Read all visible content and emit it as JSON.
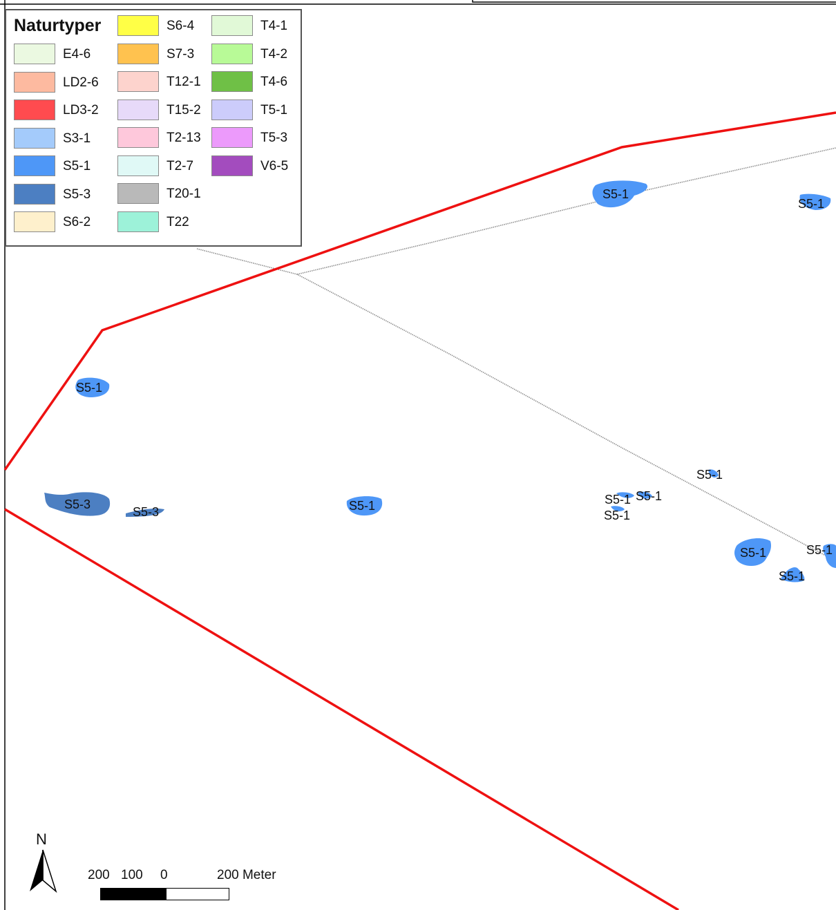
{
  "legend": {
    "title": "Naturtyper",
    "columns": [
      [
        {
          "code": "E4-6",
          "color": "#ebf9e1"
        },
        {
          "code": "LD2-6",
          "color": "#fdbaa0"
        },
        {
          "code": "LD3-2",
          "color": "#ff4b4f"
        },
        {
          "code": "S3-1",
          "color": "#a4cbfb"
        },
        {
          "code": "S5-1",
          "color": "#4e97f7"
        },
        {
          "code": "S5-3",
          "color": "#4c7fc2"
        },
        {
          "code": "S6-2",
          "color": "#fef0cc"
        }
      ],
      [
        {
          "code": "S6-4",
          "color": "#ffff46"
        },
        {
          "code": "S7-3",
          "color": "#ffc24f"
        },
        {
          "code": "T12-1",
          "color": "#fdd3cd"
        },
        {
          "code": "T15-2",
          "color": "#e7daf9"
        },
        {
          "code": "T2-13",
          "color": "#fec8db"
        },
        {
          "code": "T2-7",
          "color": "#e0f9f6"
        },
        {
          "code": "T20-1",
          "color": "#b9b9b9"
        },
        {
          "code": "T22",
          "color": "#9df2d9"
        }
      ],
      [
        {
          "code": "T4-1",
          "color": "#e1f9d7"
        },
        {
          "code": "T4-2",
          "color": "#b8fa97"
        },
        {
          "code": "T4-6",
          "color": "#6fc046"
        },
        {
          "code": "T5-1",
          "color": "#ccccfb"
        },
        {
          "code": "T5-3",
          "color": "#ec9afb"
        },
        {
          "code": "V6-5",
          "color": "#a34cbe"
        }
      ]
    ]
  },
  "map": {
    "boundary_color": "#ee1111",
    "track_color": "#8e8e8e",
    "features": [
      {
        "label": "S5-1",
        "type": "S5-1"
      },
      {
        "label": "S5-1",
        "type": "S5-1"
      },
      {
        "label": "S5-1",
        "type": "S5-1"
      },
      {
        "label": "S5-3",
        "type": "S5-3"
      },
      {
        "label": "S5-3",
        "type": "S5-3"
      },
      {
        "label": "S5-1",
        "type": "S5-1"
      },
      {
        "label": "S5-1",
        "type": "S5-1"
      },
      {
        "label": "S5-1",
        "type": "S5-1"
      },
      {
        "label": "S5-1",
        "type": "S5-1"
      },
      {
        "label": "S5-1",
        "type": "S5-1"
      },
      {
        "label": "S5-1",
        "type": "S5-1"
      },
      {
        "label": "S5-1",
        "type": "S5-1"
      },
      {
        "label": "S5-1",
        "type": "S5-1"
      }
    ]
  },
  "north_arrow": {
    "label": "N"
  },
  "scale_bar": {
    "labels": [
      "200",
      "100",
      "0",
      "200 Meter"
    ]
  }
}
